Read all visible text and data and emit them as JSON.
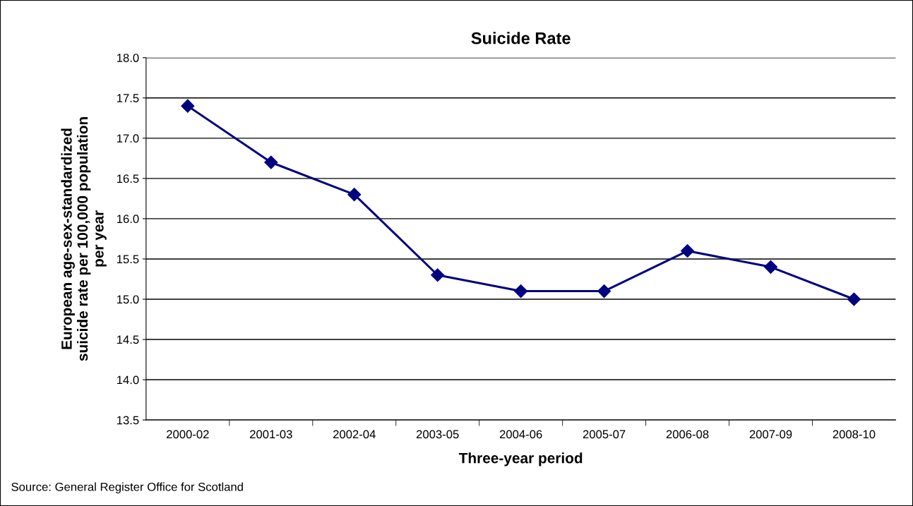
{
  "chart_data": {
    "type": "line",
    "title": "Suicide Rate",
    "xlabel": "Three-year period",
    "ylabel": "European age-sex-standardized\nsuicide rate per 100,000 population\nper year",
    "categories": [
      "2000-02",
      "2001-03",
      "2002-04",
      "2003-05",
      "2004-06",
      "2005-07",
      "2006-08",
      "2007-09",
      "2008-10"
    ],
    "series": [
      {
        "color": "#000080",
        "values": [
          17.4,
          16.7,
          16.3,
          15.3,
          15.1,
          15.1,
          15.6,
          15.4,
          15.0
        ]
      }
    ],
    "ylim": [
      13.5,
      18.0
    ],
    "yticks": [
      {
        "value": 13.5,
        "label": "13.5"
      },
      {
        "value": 14.0,
        "label": "14.0"
      },
      {
        "value": 14.5,
        "label": "14.5"
      },
      {
        "value": 15.0,
        "label": "15.0"
      },
      {
        "value": 15.5,
        "label": "15.5"
      },
      {
        "value": 16.0,
        "label": "16.0"
      },
      {
        "value": 16.5,
        "label": "16.5"
      },
      {
        "value": 17.0,
        "label": "17.0"
      },
      {
        "value": 17.5,
        "label": "17.5"
      },
      {
        "value": 18.0,
        "label": "18.0"
      }
    ],
    "grid": "y",
    "marker": "diamond",
    "line_style": "solid",
    "annotations": [
      "Source: General Register Office for Scotland"
    ]
  }
}
